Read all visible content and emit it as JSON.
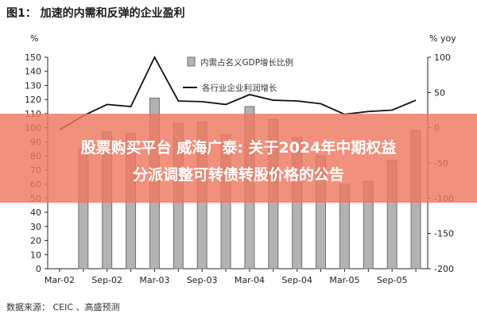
{
  "figure_title": "图1： 加速的内需和反弹的企业盈利",
  "source_text": "数据来源： CEIC 、高盛预测",
  "banner": {
    "line1": "股票购买平台 威海广泰: 关于2024年中期权益",
    "line2": "分派调整可转债转股价格的公告"
  },
  "colors": {
    "bar_fill": "#b3b3b3",
    "bar_stroke": "#6e6e6e",
    "line": "#111111",
    "banner": "#ee785f"
  },
  "chart_data": {
    "type": "bar",
    "left_unit": "%",
    "right_unit": "% yoy",
    "y_left_ticks": [
      "0",
      "10",
      "20",
      "30",
      "40",
      "50",
      "60",
      "70",
      "80",
      "90",
      "100",
      "110",
      "120",
      "130",
      "140",
      "150"
    ],
    "y_right_ticks": [
      "100",
      "50",
      "0",
      "-50",
      "-100",
      "-150",
      "-200"
    ],
    "ylim_left": [
      0,
      150
    ],
    "ylim_right": [
      -200,
      100
    ],
    "x_tick_labels": [
      "Mar-02",
      "Sep-02",
      "Mar-03",
      "Sep-03",
      "Mar-04",
      "Sep-04",
      "Mar-05",
      "Sep-05"
    ],
    "periods": [
      "Mar-02",
      "Jun-02",
      "Sep-02",
      "Dec-02",
      "Mar-03",
      "Jun-03",
      "Sep-03",
      "Dec-03",
      "Mar-04",
      "Jun-04",
      "Sep-04",
      "Dec-04",
      "Mar-05",
      "Jun-05",
      "Sep-05",
      "Dec-05"
    ],
    "series": [
      {
        "name": "内需占名义GDP增长比例",
        "axis": "left",
        "kind": "bar",
        "values": [
          null,
          85,
          97,
          96,
          121,
          103,
          104,
          95,
          115,
          106,
          93,
          80,
          60,
          62,
          77,
          98
        ]
      },
      {
        "name": "各行业企业利润增长",
        "axis": "right",
        "kind": "line",
        "values": [
          -3,
          17,
          33,
          30,
          100,
          38,
          37,
          33,
          47,
          39,
          38,
          34,
          19,
          23,
          25,
          39
        ]
      }
    ],
    "legend_position": "top-center",
    "grid": false
  }
}
